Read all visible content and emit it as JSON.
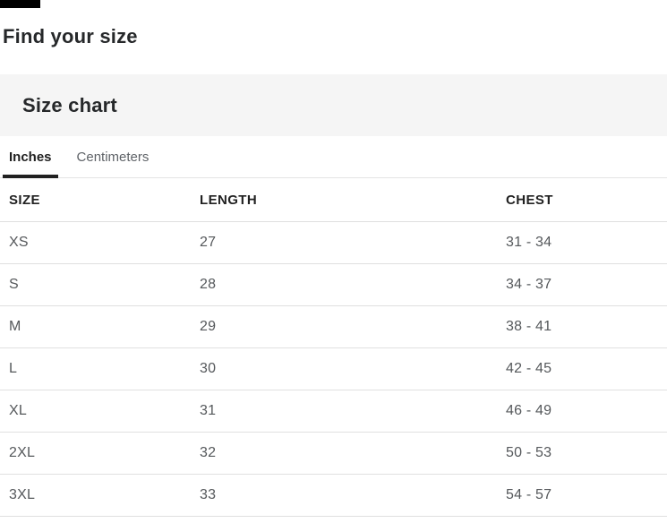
{
  "page": {
    "title": "Find your size"
  },
  "size_chart": {
    "title": "Size chart",
    "tabs": [
      {
        "label": "Inches",
        "active": true
      },
      {
        "label": "Centimeters",
        "active": false
      }
    ],
    "table": {
      "columns": [
        "SIZE",
        "LENGTH",
        "CHEST"
      ],
      "rows": [
        [
          "XS",
          "27",
          "31 - 34"
        ],
        [
          "S",
          "28",
          "34 - 37"
        ],
        [
          "M",
          "29",
          "38 - 41"
        ],
        [
          "L",
          "30",
          "42 - 45"
        ],
        [
          "XL",
          "31",
          "46 - 49"
        ],
        [
          "2XL",
          "32",
          "50 - 53"
        ],
        [
          "3XL",
          "33",
          "54 - 57"
        ]
      ]
    }
  },
  "colors": {
    "heading_text": "#26282a",
    "table_header_text": "#212121",
    "cell_text": "#55585b",
    "inactive_tab_text": "#5f6368",
    "panel_background": "#f5f5f5",
    "row_border": "#e0e0e0",
    "active_tab_underline": "#212121",
    "top_bar": "#000000"
  }
}
